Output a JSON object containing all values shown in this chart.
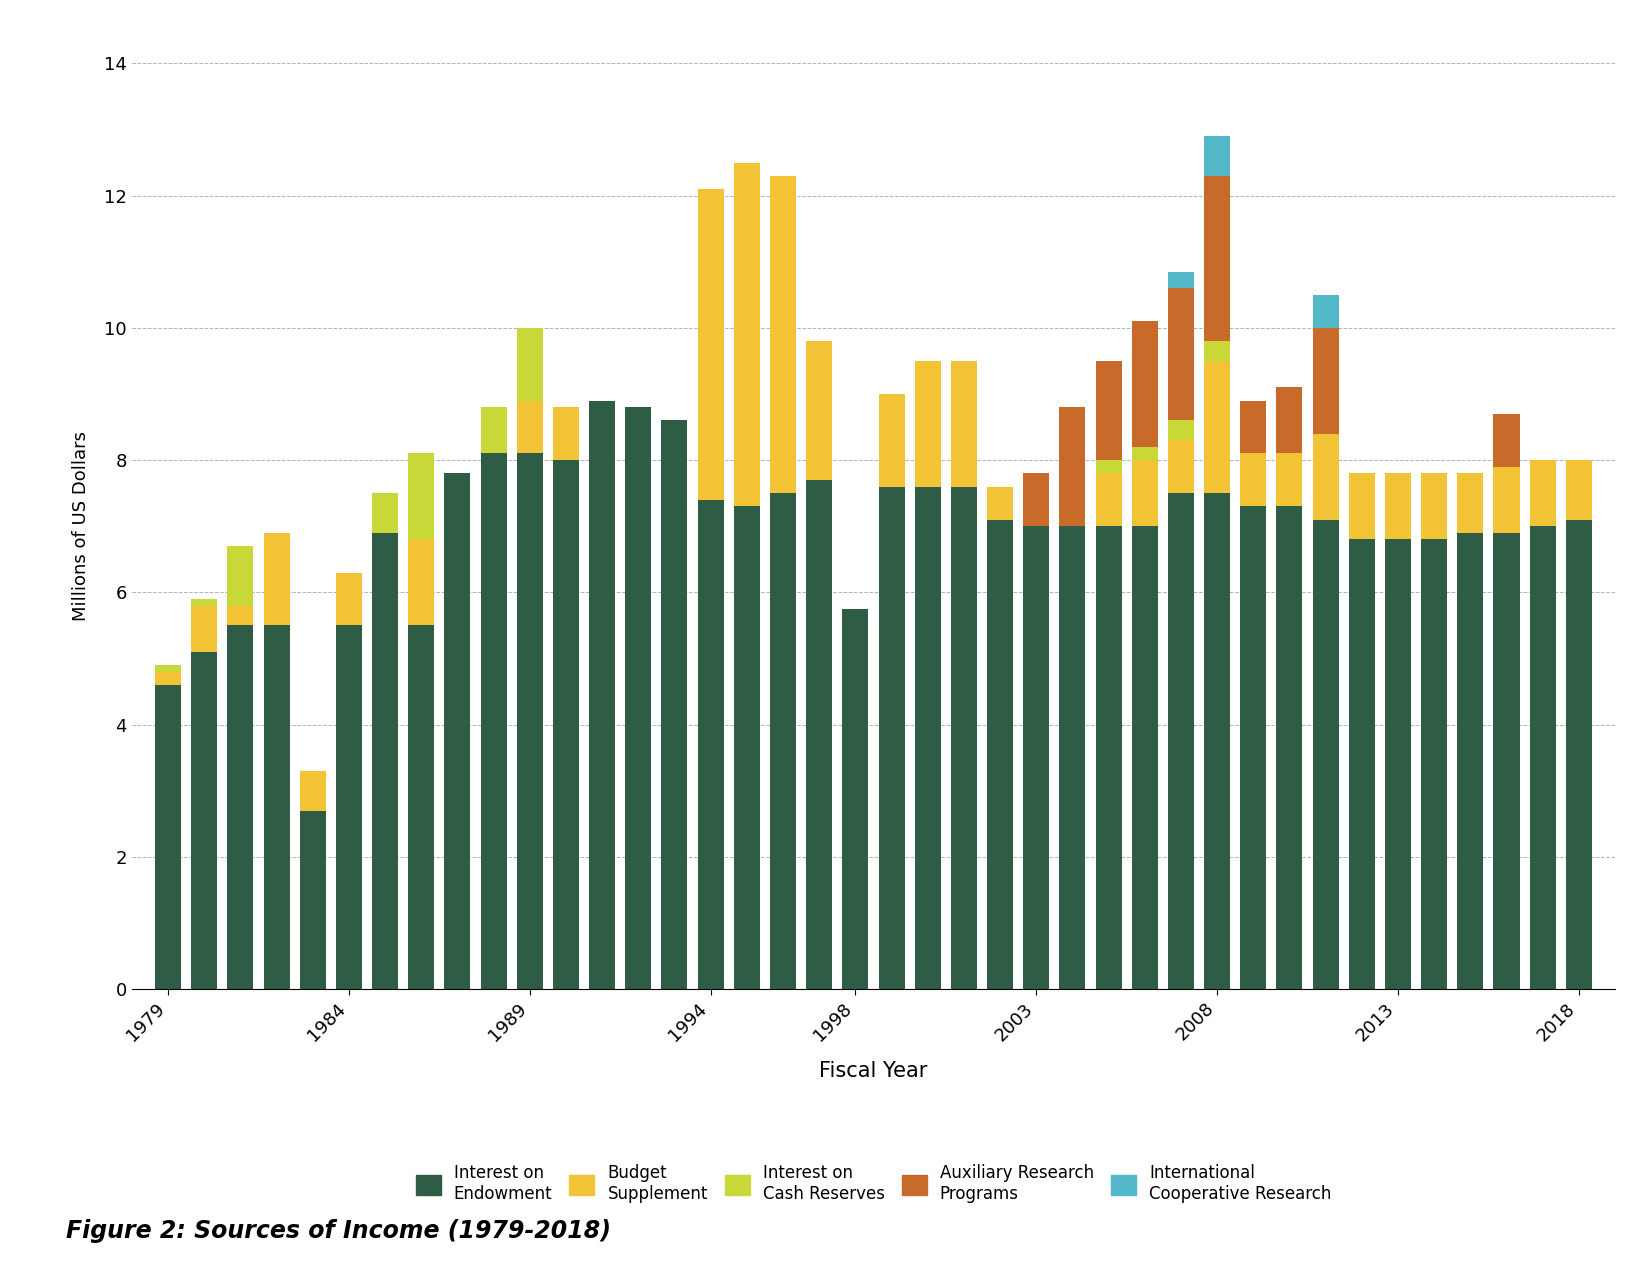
{
  "years": [
    1979,
    1980,
    1981,
    1982,
    1983,
    1984,
    1985,
    1986,
    1987,
    1988,
    1989,
    1990,
    1991,
    1992,
    1993,
    1994,
    1995,
    1996,
    1997,
    1998,
    1999,
    2000,
    2001,
    2002,
    2003,
    2004,
    2005,
    2006,
    2007,
    2008,
    2009,
    2010,
    2011,
    2012,
    2013,
    2014,
    2015,
    2016,
    2017,
    2018
  ],
  "interest_on_endowment": [
    4.6,
    5.1,
    5.5,
    5.5,
    2.7,
    5.5,
    6.9,
    5.5,
    7.8,
    8.1,
    8.1,
    8.0,
    8.9,
    8.8,
    8.6,
    7.4,
    7.3,
    7.5,
    7.7,
    5.75,
    7.6,
    7.6,
    7.6,
    7.1,
    7.0,
    7.0,
    7.0,
    7.0,
    7.5,
    7.5,
    7.3,
    7.3,
    7.1,
    6.8,
    6.8,
    6.8,
    6.9,
    6.9,
    7.0,
    7.1
  ],
  "budget_supplement": [
    0.2,
    0.7,
    0.3,
    1.4,
    0.6,
    0.8,
    0.0,
    1.3,
    0.0,
    0.0,
    0.8,
    0.8,
    0.0,
    0.0,
    0.0,
    4.7,
    5.2,
    4.8,
    2.1,
    0.0,
    1.4,
    1.9,
    1.9,
    0.5,
    0.0,
    0.0,
    0.8,
    1.0,
    0.8,
    2.0,
    0.8,
    0.8,
    1.3,
    1.0,
    1.0,
    1.0,
    0.9,
    1.0,
    1.0,
    0.9
  ],
  "interest_on_cash": [
    0.1,
    0.1,
    0.9,
    0.0,
    0.0,
    0.0,
    0.6,
    1.3,
    0.0,
    0.7,
    1.1,
    0.0,
    0.0,
    0.0,
    0.0,
    0.0,
    0.0,
    0.0,
    0.0,
    0.0,
    0.0,
    0.0,
    0.0,
    0.0,
    0.0,
    0.0,
    0.2,
    0.2,
    0.3,
    0.3,
    0.0,
    0.0,
    0.0,
    0.0,
    0.0,
    0.0,
    0.0,
    0.0,
    0.0,
    0.0
  ],
  "auxiliary_research": [
    0.0,
    0.0,
    0.0,
    0.0,
    0.0,
    0.0,
    0.0,
    0.0,
    0.0,
    0.0,
    0.0,
    0.0,
    0.0,
    0.0,
    0.0,
    0.0,
    0.0,
    0.0,
    0.0,
    0.0,
    0.0,
    0.0,
    0.0,
    0.0,
    0.8,
    1.8,
    1.5,
    1.9,
    2.0,
    2.5,
    0.8,
    1.0,
    1.6,
    0.0,
    0.0,
    0.0,
    0.0,
    0.8,
    0.0,
    0.0
  ],
  "international_coop": [
    0.0,
    0.0,
    0.0,
    0.0,
    0.0,
    0.0,
    0.0,
    0.0,
    0.0,
    0.0,
    0.0,
    0.0,
    0.0,
    0.0,
    0.0,
    0.0,
    0.0,
    0.0,
    0.0,
    0.0,
    0.0,
    0.0,
    0.0,
    0.0,
    0.0,
    0.0,
    0.0,
    0.0,
    0.25,
    0.6,
    0.0,
    0.0,
    0.5,
    0.0,
    0.0,
    0.0,
    0.0,
    0.0,
    0.0,
    0.0
  ],
  "colors": {
    "interest_on_endowment": "#2e5c45",
    "budget_supplement": "#f2c435",
    "interest_on_cash": "#c8d838",
    "auxiliary_research": "#c86a2a",
    "international_coop": "#52b8c8"
  },
  "xlabel": "Fiscal Year",
  "ylabel": "Millions of US Dollars",
  "ylim": [
    0,
    14
  ],
  "yticks": [
    0,
    2,
    4,
    6,
    8,
    10,
    12,
    14
  ],
  "xtick_positions": [
    1979,
    1984,
    1989,
    1994,
    1998,
    2003,
    2008,
    2013,
    2018
  ],
  "figure_title": "Figure 2: Sources of Income (1979-2018)"
}
